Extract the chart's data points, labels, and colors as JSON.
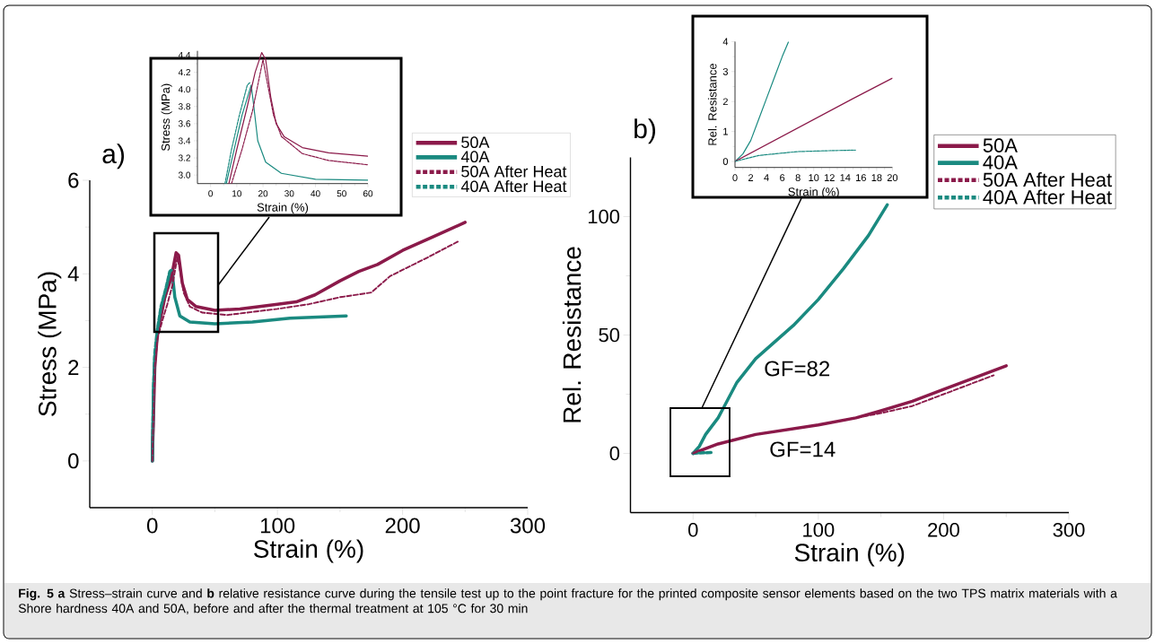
{
  "chart_data": [
    {
      "type": "line",
      "xlabel": "Strain (%)",
      "ylabel": "Stress (MPa)",
      "xlim": [
        -50,
        300
      ],
      "ylim": [
        -1,
        6
      ],
      "xticks": [
        0,
        100,
        200,
        300
      ],
      "yticks": [
        0,
        2,
        4,
        6
      ],
      "legend": "top right",
      "series": [
        {
          "name": "50A",
          "color": "#8b1a4a",
          "line_style": "solid",
          "x": [
            0,
            1,
            2,
            4,
            7,
            10,
            15,
            19,
            21,
            24,
            28,
            35,
            50,
            70,
            100,
            115,
            130,
            150,
            165,
            180,
            200,
            225,
            250
          ],
          "values": [
            0,
            1,
            2,
            2.7,
            3.1,
            3.5,
            3.9,
            4.45,
            4.4,
            3.8,
            3.45,
            3.3,
            3.22,
            3.25,
            3.35,
            3.4,
            3.55,
            3.85,
            4.05,
            4.2,
            4.5,
            4.8,
            5.1
          ]
        },
        {
          "name": "40A",
          "color": "#1a8a80",
          "line_style": "solid",
          "x": [
            0,
            1,
            2,
            4,
            7,
            12,
            16,
            18,
            22,
            30,
            50,
            80,
            110,
            155
          ],
          "values": [
            0,
            1.5,
            2.2,
            2.7,
            3.2,
            3.7,
            4.0,
            3.5,
            3.1,
            2.97,
            2.93,
            2.97,
            3.05,
            3.1
          ]
        },
        {
          "name": "50A After Heat",
          "color": "#8b1a4a",
          "line_style": "dashed",
          "x": [
            0,
            1,
            2,
            4,
            8,
            12,
            16,
            20,
            22,
            25,
            30,
            40,
            60,
            100,
            125,
            150,
            175,
            190,
            220,
            245
          ],
          "values": [
            0,
            1,
            2,
            2.6,
            3.0,
            3.35,
            3.75,
            4.35,
            4.1,
            3.6,
            3.3,
            3.17,
            3.12,
            3.25,
            3.35,
            3.5,
            3.6,
            3.95,
            4.35,
            4.7
          ]
        },
        {
          "name": "40A After Heat",
          "color": "#1a8a80",
          "line_style": "dashed",
          "x": [
            0,
            1,
            2,
            4,
            7,
            11,
            14,
            16
          ],
          "values": [
            0,
            1.6,
            2.3,
            2.8,
            3.3,
            3.7,
            4.05,
            4.1
          ]
        }
      ],
      "annotations": [
        "a)",
        "**Fig. 5** **a** Stress–strain curve and **b** relative resistance curve during the tensile test up to the point fracture for the printed composite sensor elements based on the two TPS matrix materials with a Shore hardness 40A and 50A, before and after the thermal treatment at 105 °C for 30 min"
      ]
    },
    {
      "type": "line",
      "xlabel": "Strain (%)",
      "ylabel": "Stress (MPa)",
      "xlim": [
        -5,
        60
      ],
      "ylim": [
        2.9,
        4.45
      ],
      "xticks": [
        0,
        10,
        20,
        30,
        40,
        50,
        60
      ],
      "yticks": [
        {
          "value": 3.0,
          "label": "3.0"
        },
        3.2,
        3.4,
        3.6,
        3.8,
        {
          "value": 4.0,
          "label": "4.0"
        },
        4.2,
        4.4
      ],
      "series": [
        {
          "color": "#8b1a4a",
          "line_style": "solid",
          "x": [
            7,
            10,
            14,
            17,
            19.5,
            21,
            23,
            25,
            28,
            35,
            45,
            60
          ],
          "values": [
            2.9,
            3.3,
            3.8,
            4.2,
            4.43,
            4.35,
            3.9,
            3.6,
            3.45,
            3.32,
            3.26,
            3.22
          ]
        },
        {
          "color": "#1a8a80",
          "line_style": "solid",
          "x": [
            6,
            9,
            12,
            15.5,
            16.5,
            18,
            21,
            27,
            40,
            60
          ],
          "values": [
            2.9,
            3.3,
            3.7,
            4.05,
            3.8,
            3.4,
            3.15,
            3.02,
            2.95,
            2.94
          ]
        },
        {
          "color": "#8b1a4a",
          "line_style": "dashed",
          "x": [
            8,
            12,
            16,
            20,
            21.5,
            24,
            27,
            35,
            45,
            60
          ],
          "values": [
            2.9,
            3.3,
            3.75,
            4.35,
            4.1,
            3.7,
            3.45,
            3.25,
            3.17,
            3.12
          ]
        },
        {
          "color": "#1a8a80",
          "line_style": "dashed",
          "x": [
            5.5,
            8,
            11,
            14,
            15
          ],
          "values": [
            2.9,
            3.3,
            3.7,
            4.05,
            4.08
          ]
        }
      ]
    },
    {
      "type": "line",
      "xlabel": "Strain (%)",
      "ylabel": "Rel. Resistance",
      "xlim": [
        -50,
        300
      ],
      "ylim": [
        -25,
        125
      ],
      "xticks": [
        0,
        100,
        200,
        300
      ],
      "yticks": [
        0,
        50,
        100
      ],
      "legend": "top right",
      "series": [
        {
          "name": "50A",
          "color": "#8b1a4a",
          "line_style": "solid",
          "x": [
            0,
            10,
            20,
            50,
            100,
            130,
            150,
            175,
            200,
            225,
            250
          ],
          "values": [
            0,
            2,
            4,
            8,
            12,
            15,
            18,
            22,
            27,
            32,
            37
          ]
        },
        {
          "name": "40A",
          "color": "#1a8a80",
          "line_style": "solid",
          "x": [
            0,
            5,
            10,
            20,
            25,
            35,
            50,
            65,
            80,
            100,
            120,
            140,
            155
          ],
          "values": [
            0,
            3,
            8,
            15,
            20,
            30,
            40,
            47,
            54,
            65,
            78,
            92,
            105
          ]
        },
        {
          "name": "50A After Heat",
          "color": "#8b1a4a",
          "line_style": "dashed",
          "x": [
            0,
            20,
            50,
            100,
            150,
            175,
            200,
            240
          ],
          "values": [
            0,
            4,
            8,
            12,
            17,
            20,
            25,
            33
          ]
        },
        {
          "name": "40A After Heat",
          "color": "#1a8a80",
          "line_style": "dashed",
          "x": [
            0,
            5,
            10,
            15
          ],
          "values": [
            0,
            0.2,
            0.3,
            0.4
          ]
        }
      ],
      "annotations": [
        "b)",
        "GF=82",
        "GF=14"
      ]
    },
    {
      "type": "line",
      "xlabel": "Strain (%)",
      "ylabel": "Rel. Resistance",
      "xlim": [
        0,
        20
      ],
      "ylim": [
        -0.2,
        4
      ],
      "xticks": [
        0,
        2,
        4,
        6,
        8,
        10,
        12,
        14,
        16,
        18,
        20
      ],
      "yticks": [
        0,
        1,
        2,
        3,
        4
      ],
      "series": [
        {
          "color": "#8b1a4a",
          "line_style": "solid",
          "x": [
            0,
            5,
            10,
            15,
            20
          ],
          "values": [
            0,
            0.7,
            1.4,
            2.1,
            2.78
          ]
        },
        {
          "color": "#1a8a80",
          "line_style": "solid",
          "x": [
            0,
            1,
            2,
            3,
            4,
            5,
            6,
            6.8
          ],
          "values": [
            0,
            0.25,
            0.7,
            1.4,
            2.1,
            2.8,
            3.5,
            4.0
          ]
        },
        {
          "color": "#1a8a80",
          "line_style": "dashed",
          "x": [
            0,
            3,
            6,
            8,
            12,
            15.3
          ],
          "values": [
            0,
            0.2,
            0.28,
            0.33,
            0.36,
            0.38
          ]
        }
      ]
    }
  ]
}
